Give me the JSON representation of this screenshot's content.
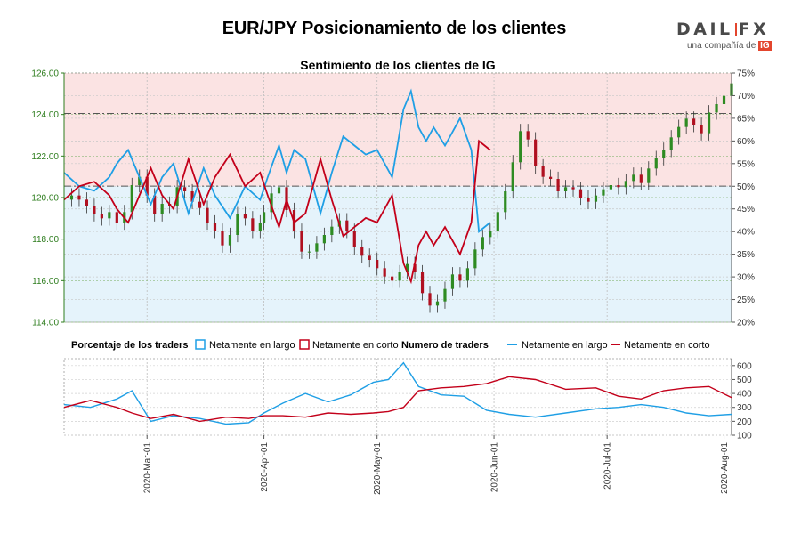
{
  "title": "EUR/JPY Posicionamiento de los clientes",
  "logo": {
    "brand_left": "DAIL",
    "brand_right": "FX",
    "tagline": "una compañía de",
    "tag_badge": "IG"
  },
  "colors": {
    "long": "#1f9fe5",
    "short": "#c3001a",
    "price_axis": "#2e7d1e",
    "bg_long": "#e5f3fb",
    "bg_short": "#fbe3e3",
    "up_candle": "#2e8b22",
    "down_candle": "#b01020"
  },
  "chart_data": [
    {
      "type": "line",
      "title": "Sentimiento de los clientes de IG",
      "price_axis": {
        "ticks": [
          "114.00",
          "116.00",
          "118.00",
          "120.00",
          "122.00",
          "124.00",
          "126.00"
        ],
        "ylim": [
          114,
          126
        ]
      },
      "percent_axis": {
        "ticks": [
          "20%",
          "25%",
          "30%",
          "35%",
          "40%",
          "45%",
          "50%",
          "55%",
          "60%",
          "65%",
          "70%",
          "75%"
        ],
        "ylim": [
          20,
          75
        ]
      },
      "x_ticks": [
        "2020-Mar-01",
        "2020-Apr-01",
        "2020-May-01",
        "2020-Jun-01",
        "2020-Jul-01",
        "2020-Aug-01"
      ],
      "x_tick_dates": [
        "2020-03-01",
        "2020-04-01",
        "2020-05-01",
        "2020-06-01",
        "2020-07-01",
        "2020-08-01"
      ],
      "x_range": [
        "2020-02-08",
        "2020-08-03"
      ],
      "reference_lines_price": [
        124.05,
        120.55,
        116.85
      ],
      "price_close": [
        [
          "2020-02-10",
          120.1
        ],
        [
          "2020-02-12",
          119.9
        ],
        [
          "2020-02-14",
          119.6
        ],
        [
          "2020-02-16",
          119.2
        ],
        [
          "2020-02-18",
          119.0
        ],
        [
          "2020-02-20",
          119.3
        ],
        [
          "2020-02-22",
          118.8
        ],
        [
          "2020-02-24",
          119.3
        ],
        [
          "2020-02-26",
          120.6
        ],
        [
          "2020-02-28",
          121.0
        ],
        [
          "2020-03-01",
          120.1
        ],
        [
          "2020-03-03",
          119.2
        ],
        [
          "2020-03-05",
          119.7
        ],
        [
          "2020-03-07",
          119.6
        ],
        [
          "2020-03-09",
          120.5
        ],
        [
          "2020-03-11",
          120.3
        ],
        [
          "2020-03-13",
          119.8
        ],
        [
          "2020-03-15",
          119.5
        ],
        [
          "2020-03-17",
          118.8
        ],
        [
          "2020-03-19",
          118.4
        ],
        [
          "2020-03-21",
          117.7
        ],
        [
          "2020-03-23",
          118.2
        ],
        [
          "2020-03-25",
          119.2
        ],
        [
          "2020-03-27",
          119.0
        ],
        [
          "2020-03-29",
          118.4
        ],
        [
          "2020-03-31",
          118.8
        ],
        [
          "2020-04-01",
          119.3
        ],
        [
          "2020-04-03",
          120.2
        ],
        [
          "2020-04-05",
          120.5
        ],
        [
          "2020-04-07",
          119.4
        ],
        [
          "2020-04-09",
          118.4
        ],
        [
          "2020-04-11",
          117.4
        ],
        [
          "2020-04-13",
          117.4
        ],
        [
          "2020-04-15",
          117.8
        ],
        [
          "2020-04-17",
          118.2
        ],
        [
          "2020-04-19",
          118.6
        ],
        [
          "2020-04-21",
          118.9
        ],
        [
          "2020-04-23",
          118.4
        ],
        [
          "2020-04-25",
          117.6
        ],
        [
          "2020-04-27",
          117.2
        ],
        [
          "2020-04-29",
          117.0
        ],
        [
          "2020-05-01",
          116.6
        ],
        [
          "2020-05-03",
          116.2
        ],
        [
          "2020-05-05",
          116.0
        ],
        [
          "2020-05-07",
          116.4
        ],
        [
          "2020-05-09",
          116.8
        ],
        [
          "2020-05-11",
          116.4
        ],
        [
          "2020-05-13",
          115.4
        ],
        [
          "2020-05-15",
          114.8
        ],
        [
          "2020-05-17",
          115.0
        ],
        [
          "2020-05-19",
          115.6
        ],
        [
          "2020-05-21",
          116.3
        ],
        [
          "2020-05-23",
          116.0
        ],
        [
          "2020-05-25",
          116.6
        ],
        [
          "2020-05-27",
          117.5
        ],
        [
          "2020-05-29",
          118.1
        ],
        [
          "2020-05-31",
          118.4
        ],
        [
          "2020-06-02",
          119.3
        ],
        [
          "2020-06-04",
          120.3
        ],
        [
          "2020-06-06",
          121.7
        ],
        [
          "2020-06-08",
          123.2
        ],
        [
          "2020-06-10",
          122.8
        ],
        [
          "2020-06-12",
          121.5
        ],
        [
          "2020-06-14",
          121.0
        ],
        [
          "2020-06-16",
          120.9
        ],
        [
          "2020-06-18",
          120.3
        ],
        [
          "2020-06-20",
          120.5
        ],
        [
          "2020-06-22",
          120.4
        ],
        [
          "2020-06-24",
          120.0
        ],
        [
          "2020-06-26",
          119.8
        ],
        [
          "2020-06-28",
          120.1
        ],
        [
          "2020-06-30",
          120.4
        ],
        [
          "2020-07-02",
          120.6
        ],
        [
          "2020-07-04",
          120.5
        ],
        [
          "2020-07-06",
          120.8
        ],
        [
          "2020-07-08",
          121.1
        ],
        [
          "2020-07-10",
          120.7
        ],
        [
          "2020-07-12",
          121.4
        ],
        [
          "2020-07-14",
          121.9
        ],
        [
          "2020-07-16",
          122.3
        ],
        [
          "2020-07-18",
          122.9
        ],
        [
          "2020-07-20",
          123.4
        ],
        [
          "2020-07-22",
          123.8
        ],
        [
          "2020-07-24",
          123.5
        ],
        [
          "2020-07-26",
          123.1
        ],
        [
          "2020-07-28",
          124.1
        ],
        [
          "2020-07-30",
          124.5
        ],
        [
          "2020-08-01",
          124.9
        ],
        [
          "2020-08-03",
          125.5
        ]
      ],
      "series": [
        {
          "name": "Netamente en largo",
          "unit": "%",
          "values": [
            [
              "2020-02-08",
              53
            ],
            [
              "2020-02-12",
              50
            ],
            [
              "2020-02-16",
              49
            ],
            [
              "2020-02-20",
              52
            ],
            [
              "2020-02-22",
              55
            ],
            [
              "2020-02-25",
              58
            ],
            [
              "2020-02-28",
              52
            ],
            [
              "2020-03-02",
              46
            ],
            [
              "2020-03-05",
              52
            ],
            [
              "2020-03-08",
              55
            ],
            [
              "2020-03-12",
              44
            ],
            [
              "2020-03-16",
              54
            ],
            [
              "2020-03-19",
              48
            ],
            [
              "2020-03-23",
              43
            ],
            [
              "2020-03-27",
              50
            ],
            [
              "2020-03-31",
              47
            ],
            [
              "2020-04-02",
              52
            ],
            [
              "2020-04-05",
              59
            ],
            [
              "2020-04-07",
              53
            ],
            [
              "2020-04-09",
              58
            ],
            [
              "2020-04-12",
              56
            ],
            [
              "2020-04-16",
              44
            ],
            [
              "2020-04-19",
              53
            ],
            [
              "2020-04-22",
              61
            ],
            [
              "2020-04-25",
              59
            ],
            [
              "2020-04-28",
              57
            ],
            [
              "2020-05-01",
              58
            ],
            [
              "2020-05-03",
              55
            ],
            [
              "2020-05-05",
              52
            ],
            [
              "2020-05-08",
              67
            ],
            [
              "2020-05-10",
              71
            ],
            [
              "2020-05-12",
              63
            ],
            [
              "2020-05-14",
              60
            ],
            [
              "2020-05-16",
              63
            ],
            [
              "2020-05-19",
              59
            ],
            [
              "2020-05-23",
              65
            ],
            [
              "2020-05-26",
              58
            ],
            [
              "2020-05-28",
              40
            ],
            [
              "2020-05-31",
              42
            ]
          ]
        },
        {
          "name": "Netamente en corto",
          "unit": "%",
          "values": [
            [
              "2020-02-08",
              47
            ],
            [
              "2020-02-12",
              50
            ],
            [
              "2020-02-16",
              51
            ],
            [
              "2020-02-20",
              48
            ],
            [
              "2020-02-22",
              45
            ],
            [
              "2020-02-25",
              42
            ],
            [
              "2020-02-28",
              48
            ],
            [
              "2020-03-02",
              54
            ],
            [
              "2020-03-05",
              48
            ],
            [
              "2020-03-08",
              45
            ],
            [
              "2020-03-12",
              56
            ],
            [
              "2020-03-16",
              46
            ],
            [
              "2020-03-19",
              52
            ],
            [
              "2020-03-23",
              57
            ],
            [
              "2020-03-27",
              50
            ],
            [
              "2020-03-31",
              53
            ],
            [
              "2020-04-02",
              48
            ],
            [
              "2020-04-05",
              41
            ],
            [
              "2020-04-07",
              47
            ],
            [
              "2020-04-09",
              42
            ],
            [
              "2020-04-12",
              44
            ],
            [
              "2020-04-16",
              56
            ],
            [
              "2020-04-19",
              47
            ],
            [
              "2020-04-22",
              39
            ],
            [
              "2020-04-25",
              41
            ],
            [
              "2020-04-28",
              43
            ],
            [
              "2020-05-01",
              42
            ],
            [
              "2020-05-03",
              45
            ],
            [
              "2020-05-05",
              48
            ],
            [
              "2020-05-08",
              33
            ],
            [
              "2020-05-10",
              29
            ],
            [
              "2020-05-12",
              37
            ],
            [
              "2020-05-14",
              40
            ],
            [
              "2020-05-16",
              37
            ],
            [
              "2020-05-19",
              41
            ],
            [
              "2020-05-23",
              35
            ],
            [
              "2020-05-26",
              42
            ],
            [
              "2020-05-28",
              60
            ],
            [
              "2020-05-31",
              58
            ]
          ]
        }
      ]
    },
    {
      "type": "line",
      "y_ticks": [
        "100",
        "200",
        "300",
        "400",
        "500",
        "600"
      ],
      "ylim": [
        100,
        650
      ],
      "legend_title_pct": "Porcentaje de los traders",
      "legend_title_cnt": "Numero de traders",
      "legend_box_long": "Netamente en largo",
      "legend_box_short": "Netamente en corto",
      "legend_line_long": "Netamente en largo",
      "legend_line_short": "Netamente en corto",
      "series": [
        {
          "name": "Netamente en largo",
          "values": [
            [
              "2020-02-08",
              320
            ],
            [
              "2020-02-15",
              300
            ],
            [
              "2020-02-22",
              360
            ],
            [
              "2020-02-26",
              420
            ],
            [
              "2020-03-02",
              200
            ],
            [
              "2020-03-08",
              240
            ],
            [
              "2020-03-15",
              220
            ],
            [
              "2020-03-22",
              180
            ],
            [
              "2020-03-28",
              190
            ],
            [
              "2020-04-01",
              260
            ],
            [
              "2020-04-06",
              330
            ],
            [
              "2020-04-12",
              400
            ],
            [
              "2020-04-18",
              340
            ],
            [
              "2020-04-24",
              390
            ],
            [
              "2020-04-30",
              480
            ],
            [
              "2020-05-04",
              500
            ],
            [
              "2020-05-08",
              620
            ],
            [
              "2020-05-12",
              450
            ],
            [
              "2020-05-18",
              390
            ],
            [
              "2020-05-24",
              380
            ],
            [
              "2020-05-30",
              280
            ],
            [
              "2020-06-05",
              250
            ],
            [
              "2020-06-12",
              230
            ],
            [
              "2020-06-20",
              260
            ],
            [
              "2020-06-28",
              290
            ],
            [
              "2020-07-04",
              300
            ],
            [
              "2020-07-10",
              320
            ],
            [
              "2020-07-16",
              300
            ],
            [
              "2020-07-22",
              260
            ],
            [
              "2020-07-28",
              240
            ],
            [
              "2020-08-03",
              250
            ]
          ]
        },
        {
          "name": "Netamente en corto",
          "values": [
            [
              "2020-02-08",
              300
            ],
            [
              "2020-02-15",
              350
            ],
            [
              "2020-02-22",
              300
            ],
            [
              "2020-02-26",
              260
            ],
            [
              "2020-03-02",
              220
            ],
            [
              "2020-03-08",
              250
            ],
            [
              "2020-03-15",
              200
            ],
            [
              "2020-03-22",
              230
            ],
            [
              "2020-03-28",
              220
            ],
            [
              "2020-04-01",
              240
            ],
            [
              "2020-04-06",
              240
            ],
            [
              "2020-04-12",
              230
            ],
            [
              "2020-04-18",
              260
            ],
            [
              "2020-04-24",
              250
            ],
            [
              "2020-04-30",
              260
            ],
            [
              "2020-05-04",
              270
            ],
            [
              "2020-05-08",
              300
            ],
            [
              "2020-05-12",
              420
            ],
            [
              "2020-05-18",
              440
            ],
            [
              "2020-05-24",
              450
            ],
            [
              "2020-05-30",
              470
            ],
            [
              "2020-06-05",
              520
            ],
            [
              "2020-06-12",
              500
            ],
            [
              "2020-06-20",
              430
            ],
            [
              "2020-06-28",
              440
            ],
            [
              "2020-07-04",
              380
            ],
            [
              "2020-07-10",
              360
            ],
            [
              "2020-07-16",
              420
            ],
            [
              "2020-07-22",
              440
            ],
            [
              "2020-07-28",
              450
            ],
            [
              "2020-08-03",
              370
            ]
          ]
        }
      ]
    }
  ]
}
